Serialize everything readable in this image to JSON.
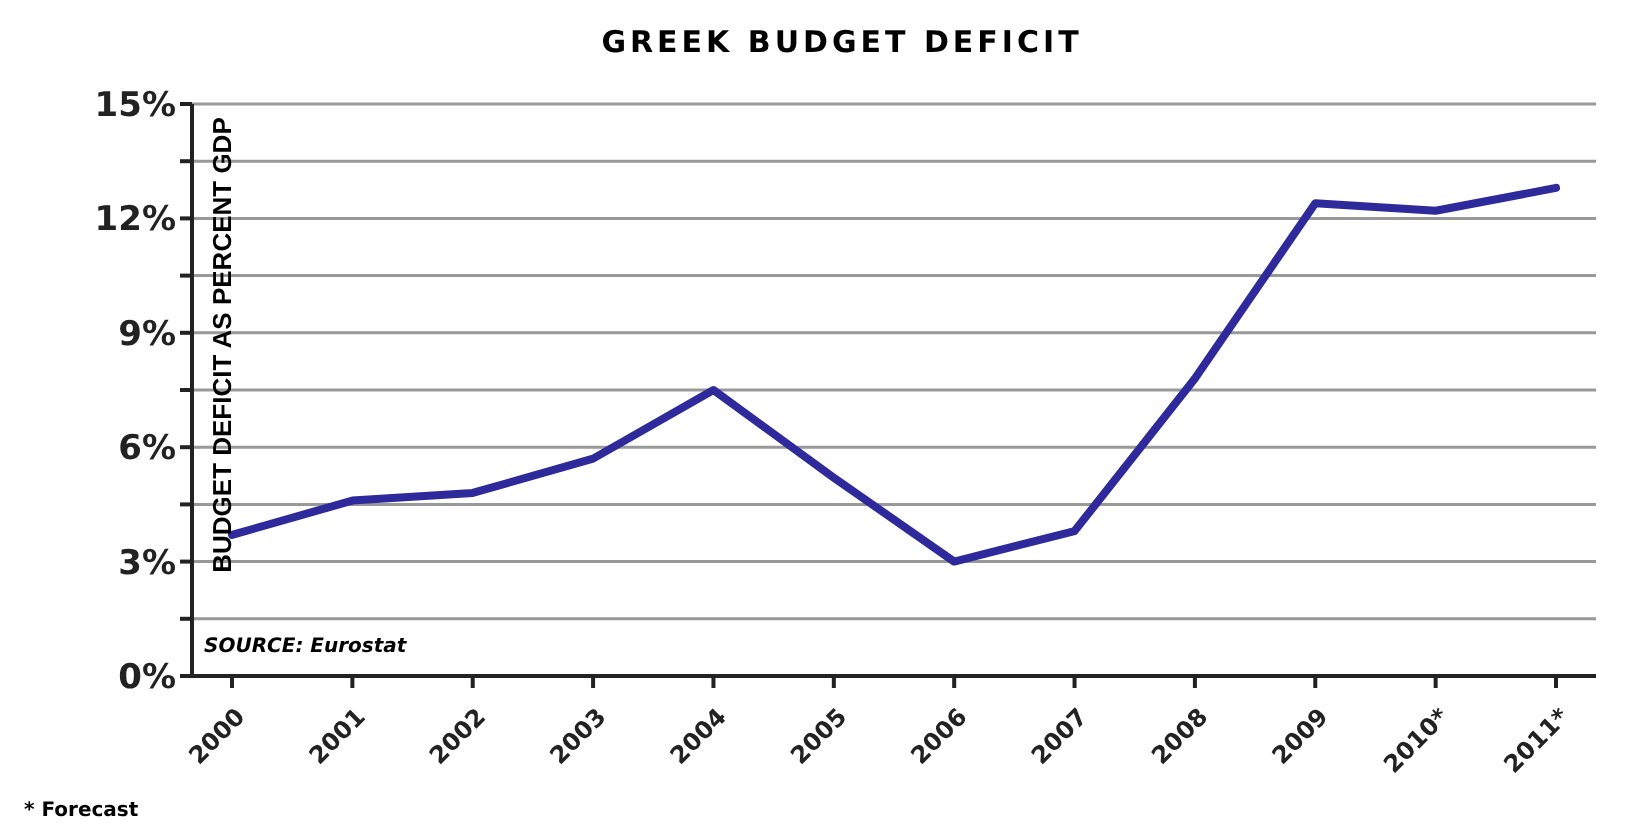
{
  "chart_data": {
    "type": "line",
    "title": "GREEK BUDGET DEFICIT",
    "ylabel": "BUDGET DEFICIT AS PERCENT GDP",
    "categories": [
      "2000",
      "2001",
      "2002",
      "2003",
      "2004",
      "2005",
      "2006",
      "2007",
      "2008",
      "2009",
      "2010*",
      "2011*"
    ],
    "series": [
      {
        "color": "#2e2a9c",
        "values": [
          3.7,
          4.6,
          4.8,
          5.7,
          7.5,
          5.2,
          3.0,
          3.8,
          7.8,
          12.4,
          12.2,
          12.8
        ]
      }
    ],
    "ylim": [
      0,
      15
    ],
    "yticks": [
      {
        "value": 0,
        "label": "0%"
      },
      {
        "value": 1.5,
        "label": null
      },
      {
        "value": 3,
        "label": "3%"
      },
      {
        "value": 4.5,
        "label": null
      },
      {
        "value": 6,
        "label": "6%"
      },
      {
        "value": 7.5,
        "label": null
      },
      {
        "value": 9,
        "label": "9%"
      },
      {
        "value": 10.5,
        "label": null
      },
      {
        "value": 12,
        "label": "12%"
      },
      {
        "value": 13.5,
        "label": null
      },
      {
        "value": 15,
        "label": "15%"
      }
    ],
    "grid": "y",
    "marker": "none",
    "line_style": "solid",
    "annotations": [
      "SOURCE: Eurostat",
      "* Forecast"
    ]
  }
}
